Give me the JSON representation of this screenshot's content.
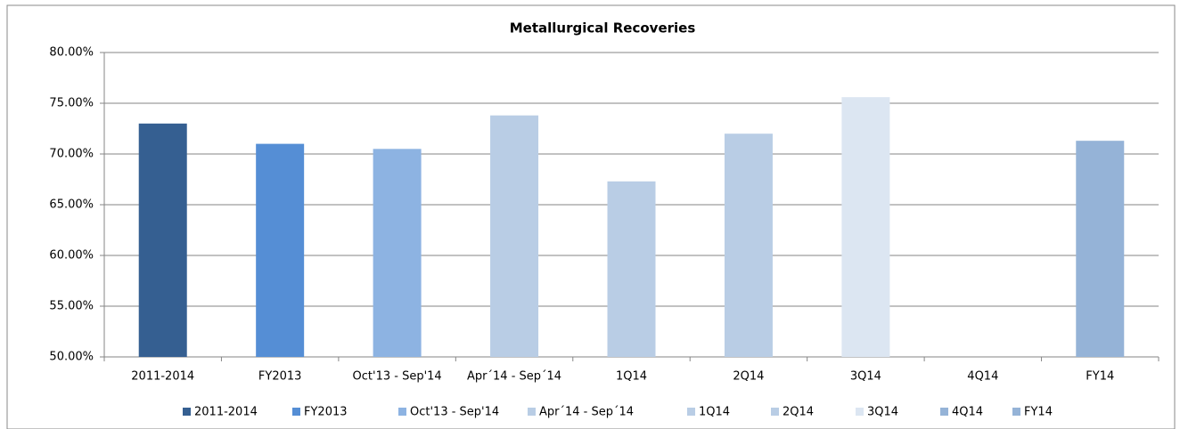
{
  "chart_data": {
    "type": "bar",
    "title": "Metallurgical Recoveries",
    "categories": [
      "2011-2014",
      "FY2013",
      "Oct'13 - Sep'14",
      "Apr´14 - Sep´14",
      "1Q14",
      "2Q14",
      "3Q14",
      "4Q14",
      "FY14"
    ],
    "values": [
      73.0,
      71.0,
      70.5,
      73.8,
      67.3,
      72.0,
      75.6,
      null,
      71.3
    ],
    "colors": [
      "#355f91",
      "#558ed5",
      "#8db3e2",
      "#b9cde5",
      "#b9cde5",
      "#b9cde5",
      "#dce6f2",
      "#95b3d7",
      "#95b3d7"
    ],
    "ylim": [
      50,
      80
    ],
    "yticks": [
      {
        "value": 50,
        "label": "50.00%"
      },
      {
        "value": 55,
        "label": "55.00%"
      },
      {
        "value": 60,
        "label": "60.00%"
      },
      {
        "value": 65,
        "label": "65.00%"
      },
      {
        "value": 70,
        "label": "70.00%"
      },
      {
        "value": 75,
        "label": "75.00%"
      },
      {
        "value": 80,
        "label": "80.00%"
      }
    ],
    "grid": true,
    "legend": "bottom"
  }
}
